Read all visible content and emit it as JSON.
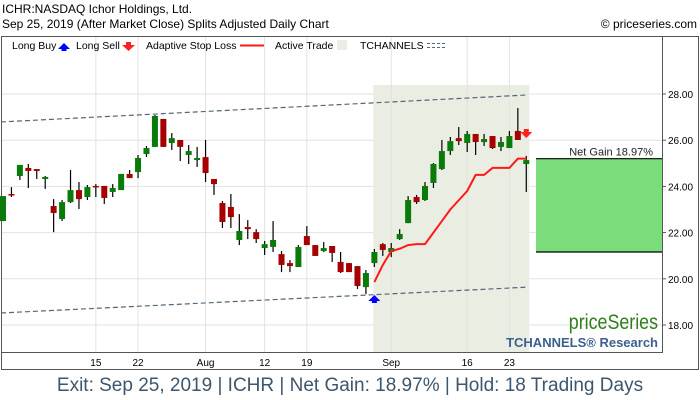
{
  "header": {
    "title": "ICHR:NASDAQ Ichor Holdings, Ltd.",
    "subtitle": "Sep 25, 2019 (After Market Close)  Splits Adjusted Daily Chart",
    "copyright": "© priceseries.com"
  },
  "legend": {
    "long_buy": "Long Buy",
    "long_sell": "Long Sell",
    "stop_loss": "Adaptive Stop Loss",
    "active_trade": "Active Trade",
    "tchannels": "TCHANNELS"
  },
  "branding": {
    "logo": "priceSeries",
    "research": "TCHANNELS® Research"
  },
  "footer": "Exit: Sep 25, 2019 | ICHR | Net Gain: 18.97% | Hold: 18 Trading Days",
  "colors": {
    "up": "#0a7a0a",
    "down": "#a80000",
    "stop": "#ff1a1a",
    "active_trade": "#eaede2",
    "net_gain": "#7adc7a",
    "channel": "#56677a",
    "buy_arrow": "#0000ff",
    "sell_arrow": "#ff2020",
    "footer_text": "#3d566e",
    "logo": "#2f7d1c",
    "research": "#3b5f8f"
  },
  "chart_data": {
    "type": "candlestick",
    "ylim": [
      17.2,
      28.6
    ],
    "yticks": [
      "28.00",
      "26.00",
      "24.00",
      "22.00",
      "20.00",
      "18.00"
    ],
    "ytick_values": [
      28,
      26,
      24,
      22,
      20,
      18
    ],
    "xticks": [
      {
        "label": "15",
        "date": "2019-07-15"
      },
      {
        "label": "22",
        "date": "2019-07-22"
      },
      {
        "label": "Aug",
        "date": "2019-08-01"
      },
      {
        "label": "12",
        "date": "2019-08-12"
      },
      {
        "label": "19",
        "date": "2019-08-19"
      },
      {
        "label": "Sep",
        "date": "2019-09-03"
      },
      {
        "label": "16",
        "date": "2019-09-16"
      },
      {
        "label": "23",
        "date": "2019-09-23"
      }
    ],
    "grid": true,
    "candles": [
      {
        "d": "2019-06-27",
        "o": 22.5,
        "h": 23.58,
        "l": 22.5,
        "c": 23.58
      },
      {
        "d": "2019-06-28",
        "o": 23.67,
        "h": 23.97,
        "l": 23.54,
        "c": 23.63
      },
      {
        "d": "2019-07-01",
        "o": 24.45,
        "h": 24.93,
        "l": 24.28,
        "c": 24.93
      },
      {
        "d": "2019-07-02",
        "o": 24.8,
        "h": 24.97,
        "l": 23.93,
        "c": 24.67
      },
      {
        "d": "2019-07-03",
        "o": 24.75,
        "h": 24.75,
        "l": 24.32,
        "c": 24.67
      },
      {
        "d": "2019-07-05",
        "o": 24.32,
        "h": 24.45,
        "l": 23.89,
        "c": 24.41
      },
      {
        "d": "2019-07-08",
        "o": 23.15,
        "h": 23.45,
        "l": 22.02,
        "c": 22.85
      },
      {
        "d": "2019-07-09",
        "o": 22.59,
        "h": 23.41,
        "l": 22.5,
        "c": 23.32
      },
      {
        "d": "2019-07-10",
        "o": 23.32,
        "h": 24.71,
        "l": 23.28,
        "c": 23.84
      },
      {
        "d": "2019-07-11",
        "o": 23.84,
        "h": 24.19,
        "l": 23.02,
        "c": 23.45
      },
      {
        "d": "2019-07-12",
        "o": 23.54,
        "h": 24.06,
        "l": 23.41,
        "c": 23.97
      },
      {
        "d": "2019-07-15",
        "o": 24.02,
        "h": 24.1,
        "l": 23.54,
        "c": 23.97
      },
      {
        "d": "2019-07-16",
        "o": 24.02,
        "h": 24.02,
        "l": 23.24,
        "c": 23.5
      },
      {
        "d": "2019-07-17",
        "o": 23.76,
        "h": 24.1,
        "l": 23.54,
        "c": 23.93
      },
      {
        "d": "2019-07-18",
        "o": 23.84,
        "h": 24.54,
        "l": 23.84,
        "c": 24.54
      },
      {
        "d": "2019-07-19",
        "o": 24.54,
        "h": 24.71,
        "l": 24.36,
        "c": 24.36
      },
      {
        "d": "2019-07-22",
        "o": 24.62,
        "h": 25.36,
        "l": 24.36,
        "c": 25.23
      },
      {
        "d": "2019-07-23",
        "o": 25.4,
        "h": 25.75,
        "l": 25.27,
        "c": 25.66
      },
      {
        "d": "2019-07-24",
        "o": 25.71,
        "h": 27.09,
        "l": 25.71,
        "c": 27.05
      },
      {
        "d": "2019-07-25",
        "o": 26.92,
        "h": 26.92,
        "l": 25.71,
        "c": 25.71
      },
      {
        "d": "2019-07-26",
        "o": 25.88,
        "h": 26.31,
        "l": 25.58,
        "c": 26.09
      },
      {
        "d": "2019-07-29",
        "o": 26.01,
        "h": 26.01,
        "l": 25.1,
        "c": 25.71
      },
      {
        "d": "2019-07-30",
        "o": 25.36,
        "h": 25.79,
        "l": 24.97,
        "c": 25.53
      },
      {
        "d": "2019-07-31",
        "o": 25.14,
        "h": 25.71,
        "l": 24.84,
        "c": 25.23
      },
      {
        "d": "2019-08-01",
        "o": 25.27,
        "h": 26.01,
        "l": 24.19,
        "c": 24.58
      },
      {
        "d": "2019-08-02",
        "o": 24.32,
        "h": 24.32,
        "l": 23.63,
        "c": 24.1
      },
      {
        "d": "2019-08-05",
        "o": 23.28,
        "h": 23.37,
        "l": 22.2,
        "c": 22.46
      },
      {
        "d": "2019-08-06",
        "o": 23.11,
        "h": 23.67,
        "l": 22.2,
        "c": 22.67
      },
      {
        "d": "2019-08-07",
        "o": 21.68,
        "h": 22.8,
        "l": 21.46,
        "c": 22.07
      },
      {
        "d": "2019-08-08",
        "o": 22.24,
        "h": 22.54,
        "l": 21.72,
        "c": 22.15
      },
      {
        "d": "2019-08-09",
        "o": 22.02,
        "h": 22.15,
        "l": 21.55,
        "c": 21.72
      },
      {
        "d": "2019-08-12",
        "o": 21.33,
        "h": 21.64,
        "l": 21.03,
        "c": 21.5
      },
      {
        "d": "2019-08-13",
        "o": 21.38,
        "h": 22.5,
        "l": 21.16,
        "c": 21.68
      },
      {
        "d": "2019-08-14",
        "o": 21.07,
        "h": 21.2,
        "l": 20.29,
        "c": 20.6
      },
      {
        "d": "2019-08-15",
        "o": 20.68,
        "h": 20.81,
        "l": 20.29,
        "c": 20.55
      },
      {
        "d": "2019-08-16",
        "o": 20.51,
        "h": 21.46,
        "l": 20.51,
        "c": 21.38
      },
      {
        "d": "2019-08-19",
        "o": 21.85,
        "h": 22.28,
        "l": 21.46,
        "c": 21.46
      },
      {
        "d": "2019-08-20",
        "o": 21.46,
        "h": 21.46,
        "l": 20.99,
        "c": 20.99
      },
      {
        "d": "2019-08-21",
        "o": 21.2,
        "h": 21.59,
        "l": 21.16,
        "c": 21.33
      },
      {
        "d": "2019-08-22",
        "o": 21.42,
        "h": 21.42,
        "l": 20.73,
        "c": 21.12
      },
      {
        "d": "2019-08-23",
        "o": 20.73,
        "h": 21.16,
        "l": 20.25,
        "c": 20.29
      },
      {
        "d": "2019-08-26",
        "o": 20.68,
        "h": 20.68,
        "l": 20.29,
        "c": 20.29
      },
      {
        "d": "2019-08-27",
        "o": 20.55,
        "h": 20.55,
        "l": 19.56,
        "c": 19.69
      },
      {
        "d": "2019-08-28",
        "o": 19.64,
        "h": 20.38,
        "l": 19.34,
        "c": 20.25
      },
      {
        "d": "2019-08-29",
        "o": 20.68,
        "h": 21.29,
        "l": 20.51,
        "c": 21.16
      },
      {
        "d": "2019-08-30",
        "o": 21.5,
        "h": 21.55,
        "l": 20.99,
        "c": 21.25
      },
      {
        "d": "2019-09-03",
        "o": 21.16,
        "h": 21.55,
        "l": 20.94,
        "c": 21.33
      },
      {
        "d": "2019-09-04",
        "o": 21.72,
        "h": 22.15,
        "l": 21.68,
        "c": 21.94
      },
      {
        "d": "2019-09-05",
        "o": 22.41,
        "h": 23.58,
        "l": 22.41,
        "c": 23.41
      },
      {
        "d": "2019-09-06",
        "o": 23.54,
        "h": 23.63,
        "l": 23.24,
        "c": 23.32
      },
      {
        "d": "2019-09-09",
        "o": 23.41,
        "h": 24.19,
        "l": 23.37,
        "c": 24.02
      },
      {
        "d": "2019-09-10",
        "o": 24.15,
        "h": 25.01,
        "l": 23.93,
        "c": 24.97
      },
      {
        "d": "2019-09-11",
        "o": 24.75,
        "h": 26.01,
        "l": 24.71,
        "c": 25.53
      },
      {
        "d": "2019-09-12",
        "o": 25.53,
        "h": 26.14,
        "l": 25.36,
        "c": 25.96
      },
      {
        "d": "2019-09-13",
        "o": 26.09,
        "h": 26.57,
        "l": 25.79,
        "c": 25.96
      },
      {
        "d": "2019-09-16",
        "o": 25.88,
        "h": 26.4,
        "l": 25.49,
        "c": 26.27
      },
      {
        "d": "2019-09-17",
        "o": 26.27,
        "h": 26.27,
        "l": 25.36,
        "c": 25.92
      },
      {
        "d": "2019-09-18",
        "o": 25.92,
        "h": 26.27,
        "l": 25.75,
        "c": 26.05
      },
      {
        "d": "2019-09-19",
        "o": 26.18,
        "h": 26.18,
        "l": 25.62,
        "c": 25.66
      },
      {
        "d": "2019-09-20",
        "o": 25.71,
        "h": 26.14,
        "l": 25.53,
        "c": 25.92
      },
      {
        "d": "2019-09-23",
        "o": 25.66,
        "h": 26.4,
        "l": 25.66,
        "c": 26.18
      },
      {
        "d": "2019-09-24",
        "o": 26.4,
        "h": 27.39,
        "l": 26.01,
        "c": 26.01
      },
      {
        "d": "2019-09-25",
        "o": 24.97,
        "h": 25.32,
        "l": 23.76,
        "c": 25.14
      }
    ],
    "adaptive_stop_loss": [
      {
        "d": "2019-08-29",
        "v": 19.86
      },
      {
        "d": "2019-08-30",
        "v": 20.6
      },
      {
        "d": "2019-09-03",
        "v": 21.2
      },
      {
        "d": "2019-09-04",
        "v": 21.3
      },
      {
        "d": "2019-09-05",
        "v": 21.46
      },
      {
        "d": "2019-09-06",
        "v": 21.5
      },
      {
        "d": "2019-09-09",
        "v": 21.5
      },
      {
        "d": "2019-09-10",
        "v": 22.0
      },
      {
        "d": "2019-09-11",
        "v": 22.5
      },
      {
        "d": "2019-09-12",
        "v": 23.0
      },
      {
        "d": "2019-09-13",
        "v": 23.4
      },
      {
        "d": "2019-09-16",
        "v": 23.8
      },
      {
        "d": "2019-09-17",
        "v": 24.5
      },
      {
        "d": "2019-09-18",
        "v": 24.5
      },
      {
        "d": "2019-09-19",
        "v": 24.8
      },
      {
        "d": "2019-09-20",
        "v": 24.8
      },
      {
        "d": "2019-09-23",
        "v": 24.8
      },
      {
        "d": "2019-09-24",
        "v": 25.2
      },
      {
        "d": "2019-09-25",
        "v": 25.2
      }
    ],
    "tchannels": {
      "upper": [
        {
          "d": "2019-06-27",
          "v": 26.79
        },
        {
          "d": "2019-09-25",
          "v": 27.96
        }
      ],
      "lower": [
        {
          "d": "2019-06-27",
          "v": 18.52
        },
        {
          "d": "2019-09-25",
          "v": 19.64
        }
      ]
    },
    "active_trade": {
      "start": "2019-08-29",
      "end": "2019-09-25"
    },
    "long_buy": {
      "d": "2019-08-29",
      "v": 19.34
    },
    "long_sell": {
      "d": "2019-09-25",
      "v": 26.4
    },
    "net_gain": {
      "label": "Net Gain 18.97%",
      "value_pct": 18.97,
      "entry": 21.16,
      "exit": 25.2
    }
  }
}
